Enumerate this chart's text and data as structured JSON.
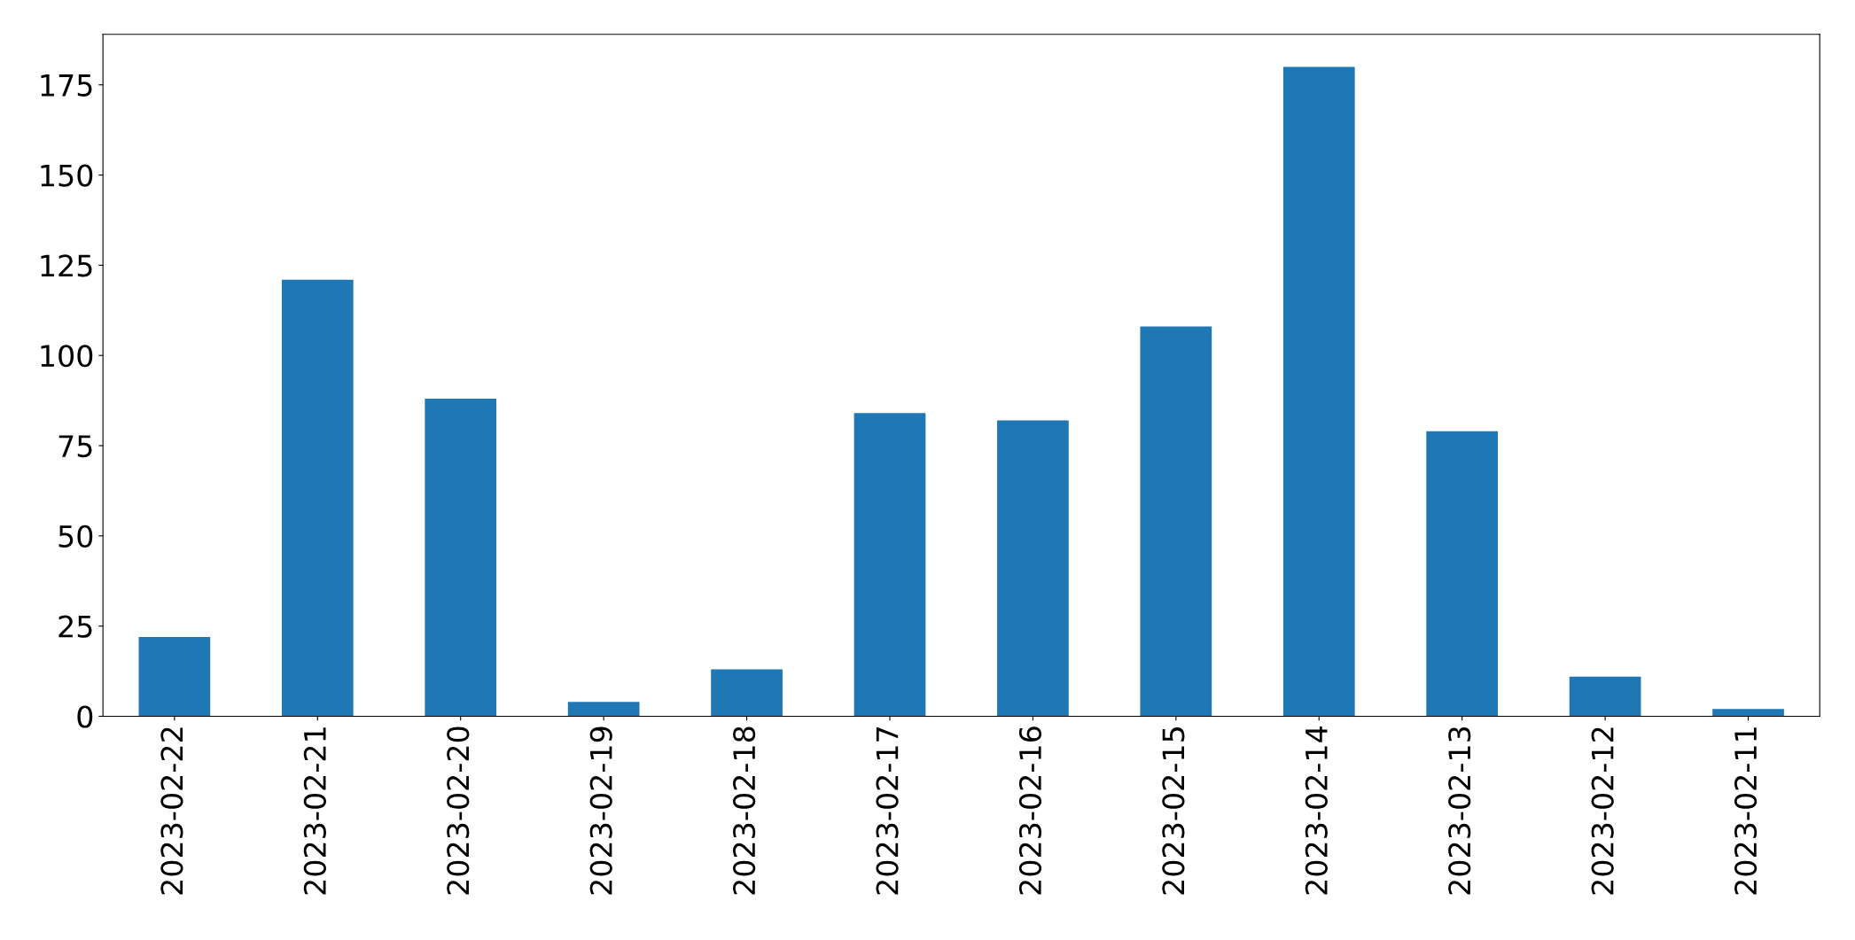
{
  "chart_data": {
    "type": "bar",
    "categories": [
      "2023-02-22",
      "2023-02-21",
      "2023-02-20",
      "2023-02-19",
      "2023-02-18",
      "2023-02-17",
      "2023-02-16",
      "2023-02-15",
      "2023-02-14",
      "2023-02-13",
      "2023-02-12",
      "2023-02-11"
    ],
    "values": [
      22,
      121,
      88,
      4,
      13,
      84,
      82,
      108,
      180,
      79,
      11,
      2
    ],
    "color": "#1f77b4",
    "ylim": [
      0,
      189
    ],
    "yticks": [
      0,
      25,
      50,
      75,
      100,
      125,
      150,
      175
    ],
    "grid": false
  }
}
